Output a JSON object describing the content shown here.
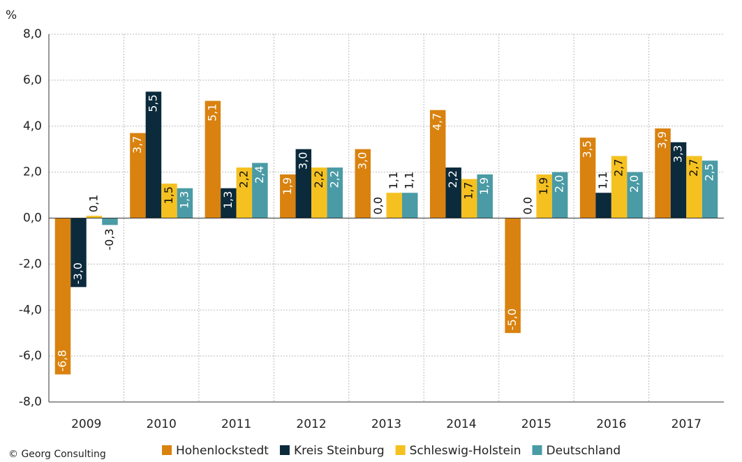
{
  "chart_data": {
    "type": "bar",
    "y_axis_label": "%",
    "source": "© Georg Consulting",
    "categories": [
      "2009",
      "2010",
      "2011",
      "2012",
      "2013",
      "2014",
      "2015",
      "2016",
      "2017"
    ],
    "series": [
      {
        "name": "Hohenlockstedt",
        "color": "#d9820f",
        "values": [
          -6.8,
          3.7,
          5.1,
          1.9,
          3.0,
          4.7,
          -5.0,
          3.5,
          3.9
        ],
        "value_labels": [
          "-6,8",
          "3,7",
          "5,1",
          "1,9",
          "3,0",
          "4,7",
          "-5,0",
          "3,5",
          "3,9"
        ]
      },
      {
        "name": "Kreis Steinburg",
        "color": "#0b2a3c",
        "values": [
          -3.0,
          5.5,
          1.3,
          3.0,
          0.0,
          2.2,
          0.0,
          1.1,
          3.3
        ],
        "value_labels": [
          "-3,0",
          "5,5",
          "1,3",
          "3,0",
          "0,0",
          "2,2",
          "0,0",
          "1,1",
          "3,3"
        ]
      },
      {
        "name": "Schleswig-Holstein",
        "color": "#f5c121",
        "values": [
          0.1,
          1.5,
          2.2,
          2.2,
          1.1,
          1.7,
          1.9,
          2.7,
          2.7
        ],
        "value_labels": [
          "0,1",
          "1,5",
          "2,2",
          "2,2",
          "1,1",
          "1,7",
          "1,9",
          "2,7",
          "2,7"
        ]
      },
      {
        "name": "Deutschland",
        "color": "#4a9ba5",
        "values": [
          -0.3,
          1.3,
          2.4,
          2.2,
          1.1,
          1.9,
          2.0,
          2.0,
          2.5
        ],
        "value_labels": [
          "-0,3",
          "1,3",
          "2,4",
          "2,2",
          "1,1",
          "1,9",
          "2,0",
          "2,0",
          "2,5"
        ]
      }
    ],
    "ylim": [
      -8,
      8
    ],
    "yticks": [
      {
        "value": -8,
        "label": "-8,0"
      },
      {
        "value": -6,
        "label": "-6,0"
      },
      {
        "value": -4,
        "label": "-4,0"
      },
      {
        "value": -2,
        "label": "-2,0"
      },
      {
        "value": 0,
        "label": "0,0"
      },
      {
        "value": 2,
        "label": "2,0"
      },
      {
        "value": 4,
        "label": "4,0"
      },
      {
        "value": 6,
        "label": "6,0"
      },
      {
        "value": 8,
        "label": "8,0"
      }
    ],
    "grid": true,
    "legend": "bottom"
  }
}
